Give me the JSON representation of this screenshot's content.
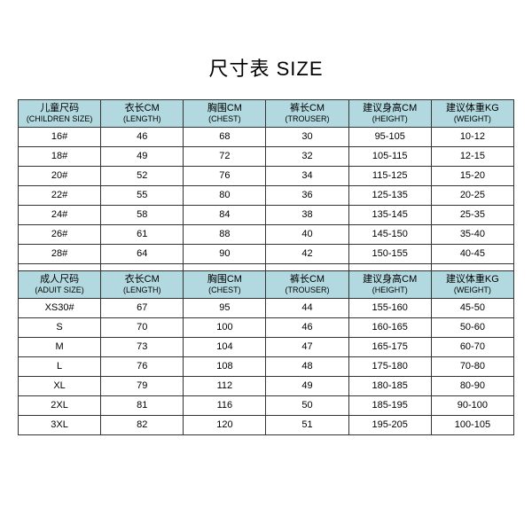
{
  "title": "尺寸表 SIZE",
  "header_bg": "#b3d9e0",
  "border_color": "#333333",
  "background_color": "#ffffff",
  "title_fontsize": 22,
  "cell_fontsize": 11,
  "children_table": {
    "columns": [
      {
        "cn": "儿童尺码",
        "en": "(CHILDREN SIZE)"
      },
      {
        "cn": "衣长CM",
        "en": "(LENGTH)"
      },
      {
        "cn": "胸围CM",
        "en": "(CHEST)"
      },
      {
        "cn": "裤长CM",
        "en": "(TROUSER)"
      },
      {
        "cn": "建议身高CM",
        "en": "(HEIGHT)"
      },
      {
        "cn": "建议体重KG",
        "en": "(WEIGHT)"
      }
    ],
    "rows": [
      [
        "16#",
        "46",
        "68",
        "30",
        "95-105",
        "10-12"
      ],
      [
        "18#",
        "49",
        "72",
        "32",
        "105-115",
        "12-15"
      ],
      [
        "20#",
        "52",
        "76",
        "34",
        "115-125",
        "15-20"
      ],
      [
        "22#",
        "55",
        "80",
        "36",
        "125-135",
        "20-25"
      ],
      [
        "24#",
        "58",
        "84",
        "38",
        "135-145",
        "25-35"
      ],
      [
        "26#",
        "61",
        "88",
        "40",
        "145-150",
        "35-40"
      ],
      [
        "28#",
        "64",
        "90",
        "42",
        "150-155",
        "40-45"
      ]
    ]
  },
  "adult_table": {
    "columns": [
      {
        "cn": "成人尺码",
        "en": "(ADUIT SIZE)"
      },
      {
        "cn": "衣长CM",
        "en": "(LENGTH)"
      },
      {
        "cn": "胸围CM",
        "en": "(CHEST)"
      },
      {
        "cn": "裤长CM",
        "en": "(TROUSER)"
      },
      {
        "cn": "建议身高CM",
        "en": "(HEIGHT)"
      },
      {
        "cn": "建议体重KG",
        "en": "(WEIGHT)"
      }
    ],
    "rows": [
      [
        "XS30#",
        "67",
        "95",
        "44",
        "155-160",
        "45-50"
      ],
      [
        "S",
        "70",
        "100",
        "46",
        "160-165",
        "50-60"
      ],
      [
        "M",
        "73",
        "104",
        "47",
        "165-175",
        "60-70"
      ],
      [
        "L",
        "76",
        "108",
        "48",
        "175-180",
        "70-80"
      ],
      [
        "XL",
        "79",
        "112",
        "49",
        "180-185",
        "80-90"
      ],
      [
        "2XL",
        "81",
        "116",
        "50",
        "185-195",
        "90-100"
      ],
      [
        "3XL",
        "82",
        "120",
        "51",
        "195-205",
        "100-105"
      ]
    ]
  }
}
